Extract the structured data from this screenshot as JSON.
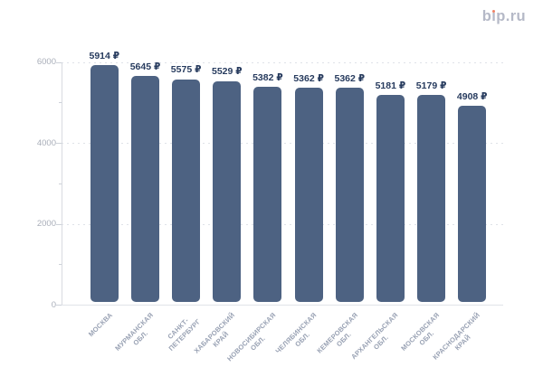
{
  "logo": {
    "text": "bip.ru",
    "text_color": "#b5b9c7",
    "dot_color": "#ee8064"
  },
  "chart_data": {
    "type": "bar",
    "title": "",
    "categories": [
      "МОСКВА",
      "МУРМАНСКАЯ ОБЛ.",
      "САНКТ-ПЕТЕРБУРГ",
      "ХАБАРОВСКИЙ КРАЙ",
      "НОВОСИБИРСКАЯ ОБЛ.",
      "ЧЕЛЯБИНСКАЯ ОБЛ.",
      "КЕМЕРОВСКАЯ ОБЛ.",
      "АРХАНГЕЛЬСКАЯ ОБЛ.",
      "МОСКОВСКАЯ ОБЛ.",
      "КРАСНОДАРСКИЙ КРАЙ"
    ],
    "categories_display": [
      "МОСКВА",
      "МУРМАНСКАЯ\nОБЛ.",
      "САНКТ-\nПЕТЕРБУРГ",
      "ХАБАРОВСКИЙ\nКРАЙ",
      "НОВОСИБИРСКАЯ\nОБЛ.",
      "ЧЕЛЯБИНСКАЯ\nОБЛ.",
      "КЕМЕРОВСКАЯ\nОБЛ.",
      "АРХАНГЕЛЬСКАЯ\nОБЛ.",
      "МОСКОВСКАЯ\nОБЛ.",
      "КРАСНОДАРСКИЙ\nКРАЙ"
    ],
    "values": [
      5914,
      5645,
      5575,
      5529,
      5382,
      5362,
      5362,
      5181,
      5179,
      4908
    ],
    "bar_labels": [
      "5914 ₽",
      "5645 ₽",
      "5575 ₽",
      "5529 ₽",
      "5382 ₽",
      "5362 ₽",
      "5362 ₽",
      "5181 ₽",
      "5179 ₽",
      "4908 ₽"
    ],
    "currency": "₽",
    "xlabel": "",
    "ylabel": "",
    "ylim": [
      0,
      6000
    ],
    "yticks": [
      0,
      2000,
      4000,
      6000
    ],
    "ytick_labels": [
      "0",
      "2000",
      "4000",
      "6000"
    ],
    "minor_yticks": [
      1000,
      3000,
      5000
    ],
    "grid": "horizontal-dotted",
    "legend_position": "none",
    "bar_color": "#4d6282",
    "value_label_color": "#273b5e",
    "category_label_color": "#98a1b3",
    "tick_label_color": "#a9aeb9"
  }
}
